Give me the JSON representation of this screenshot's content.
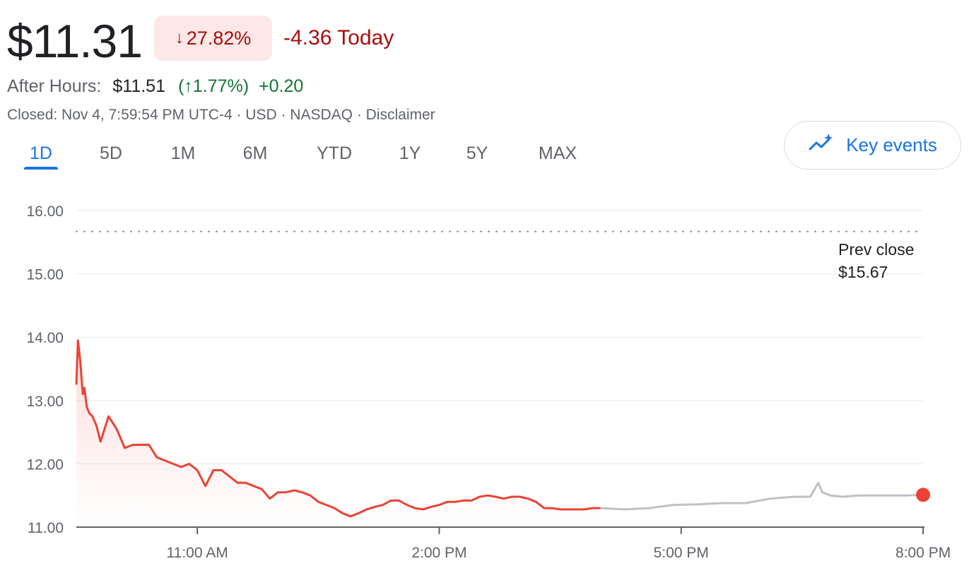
{
  "quote": {
    "price": "$11.31",
    "change_pct": "27.82%",
    "change_abs": "-4.36 Today",
    "direction": "down",
    "down_color": "#a50e0e",
    "badge_bg": "#fce8e6"
  },
  "after_hours": {
    "label": "After Hours:",
    "price": "$11.51",
    "change_pct": "(↑1.77%)",
    "change_abs": "+0.20",
    "color": "#137333"
  },
  "status": {
    "text": "Closed: Nov 4, 7:59:54 PM UTC-4 · USD · NASDAQ · Disclaimer"
  },
  "tabs": [
    {
      "label": "1D",
      "active": true
    },
    {
      "label": "5D"
    },
    {
      "label": "1M"
    },
    {
      "label": "6M"
    },
    {
      "label": "YTD"
    },
    {
      "label": "1Y"
    },
    {
      "label": "5Y"
    },
    {
      "label": "MAX"
    }
  ],
  "key_events": {
    "label": "Key events",
    "icon": "sparkle-trend-icon",
    "color": "#1a73e8"
  },
  "chart_data": {
    "type": "line",
    "y_ticks": [
      "16.00",
      "15.00",
      "14.00",
      "13.00",
      "12.00",
      "11.00"
    ],
    "x_ticks": [
      "11:00 AM",
      "2:00 PM",
      "5:00 PM",
      "8:00 PM"
    ],
    "ylim": [
      11.0,
      16.0
    ],
    "xlim_hours": [
      9.5,
      20.0
    ],
    "prev_close": {
      "label": "Prev close",
      "value": "$15.67",
      "level": 15.67
    },
    "regular_session_color": "#ea4335",
    "after_hours_color": "#bdc1c6",
    "series": [
      {
        "session": "regular",
        "x": [
          9.5,
          9.52,
          9.55,
          9.58,
          9.6,
          9.63,
          9.66,
          9.7,
          9.75,
          9.8,
          9.85,
          9.9,
          10.0,
          10.1,
          10.2,
          10.3,
          10.4,
          10.5,
          10.6,
          10.7,
          10.8,
          10.9,
          11.0,
          11.1,
          11.2,
          11.3,
          11.4,
          11.5,
          11.6,
          11.7,
          11.8,
          11.9,
          12.0,
          12.1,
          12.2,
          12.3,
          12.4,
          12.5,
          12.6,
          12.7,
          12.8,
          12.9,
          13.0,
          13.1,
          13.2,
          13.3,
          13.4,
          13.5,
          13.6,
          13.7,
          13.8,
          13.9,
          14.0,
          14.1,
          14.2,
          14.3,
          14.4,
          14.5,
          14.6,
          14.7,
          14.8,
          14.9,
          15.0,
          15.1,
          15.2,
          15.3,
          15.4,
          15.5,
          15.6,
          15.7,
          15.8,
          15.9,
          16.0
        ],
        "y": [
          13.25,
          13.95,
          13.6,
          13.1,
          13.2,
          12.9,
          12.8,
          12.75,
          12.6,
          12.35,
          12.55,
          12.75,
          12.55,
          12.25,
          12.3,
          12.3,
          12.3,
          12.1,
          12.05,
          12.0,
          11.95,
          12.0,
          11.9,
          11.65,
          11.9,
          11.9,
          11.8,
          11.7,
          11.7,
          11.65,
          11.6,
          11.45,
          11.55,
          11.55,
          11.58,
          11.55,
          11.5,
          11.4,
          11.35,
          11.3,
          11.22,
          11.17,
          11.22,
          11.28,
          11.32,
          11.35,
          11.42,
          11.42,
          11.35,
          11.3,
          11.28,
          11.32,
          11.35,
          11.4,
          11.4,
          11.42,
          11.42,
          11.48,
          11.5,
          11.48,
          11.45,
          11.48,
          11.48,
          11.45,
          11.4,
          11.3,
          11.3,
          11.28,
          11.28,
          11.28,
          11.28,
          11.3,
          11.3
        ]
      },
      {
        "session": "after_hours",
        "x": [
          16.0,
          16.3,
          16.6,
          16.9,
          17.2,
          17.5,
          17.8,
          18.1,
          18.4,
          18.6,
          18.7,
          18.75,
          18.85,
          19.0,
          19.2,
          19.4,
          19.6,
          19.8,
          20.0
        ],
        "y": [
          11.3,
          11.28,
          11.3,
          11.35,
          11.36,
          11.38,
          11.38,
          11.45,
          11.48,
          11.48,
          11.7,
          11.55,
          11.5,
          11.48,
          11.5,
          11.5,
          11.5,
          11.5,
          11.51
        ]
      }
    ],
    "last_point": {
      "x": 20.0,
      "y": 11.51
    }
  }
}
